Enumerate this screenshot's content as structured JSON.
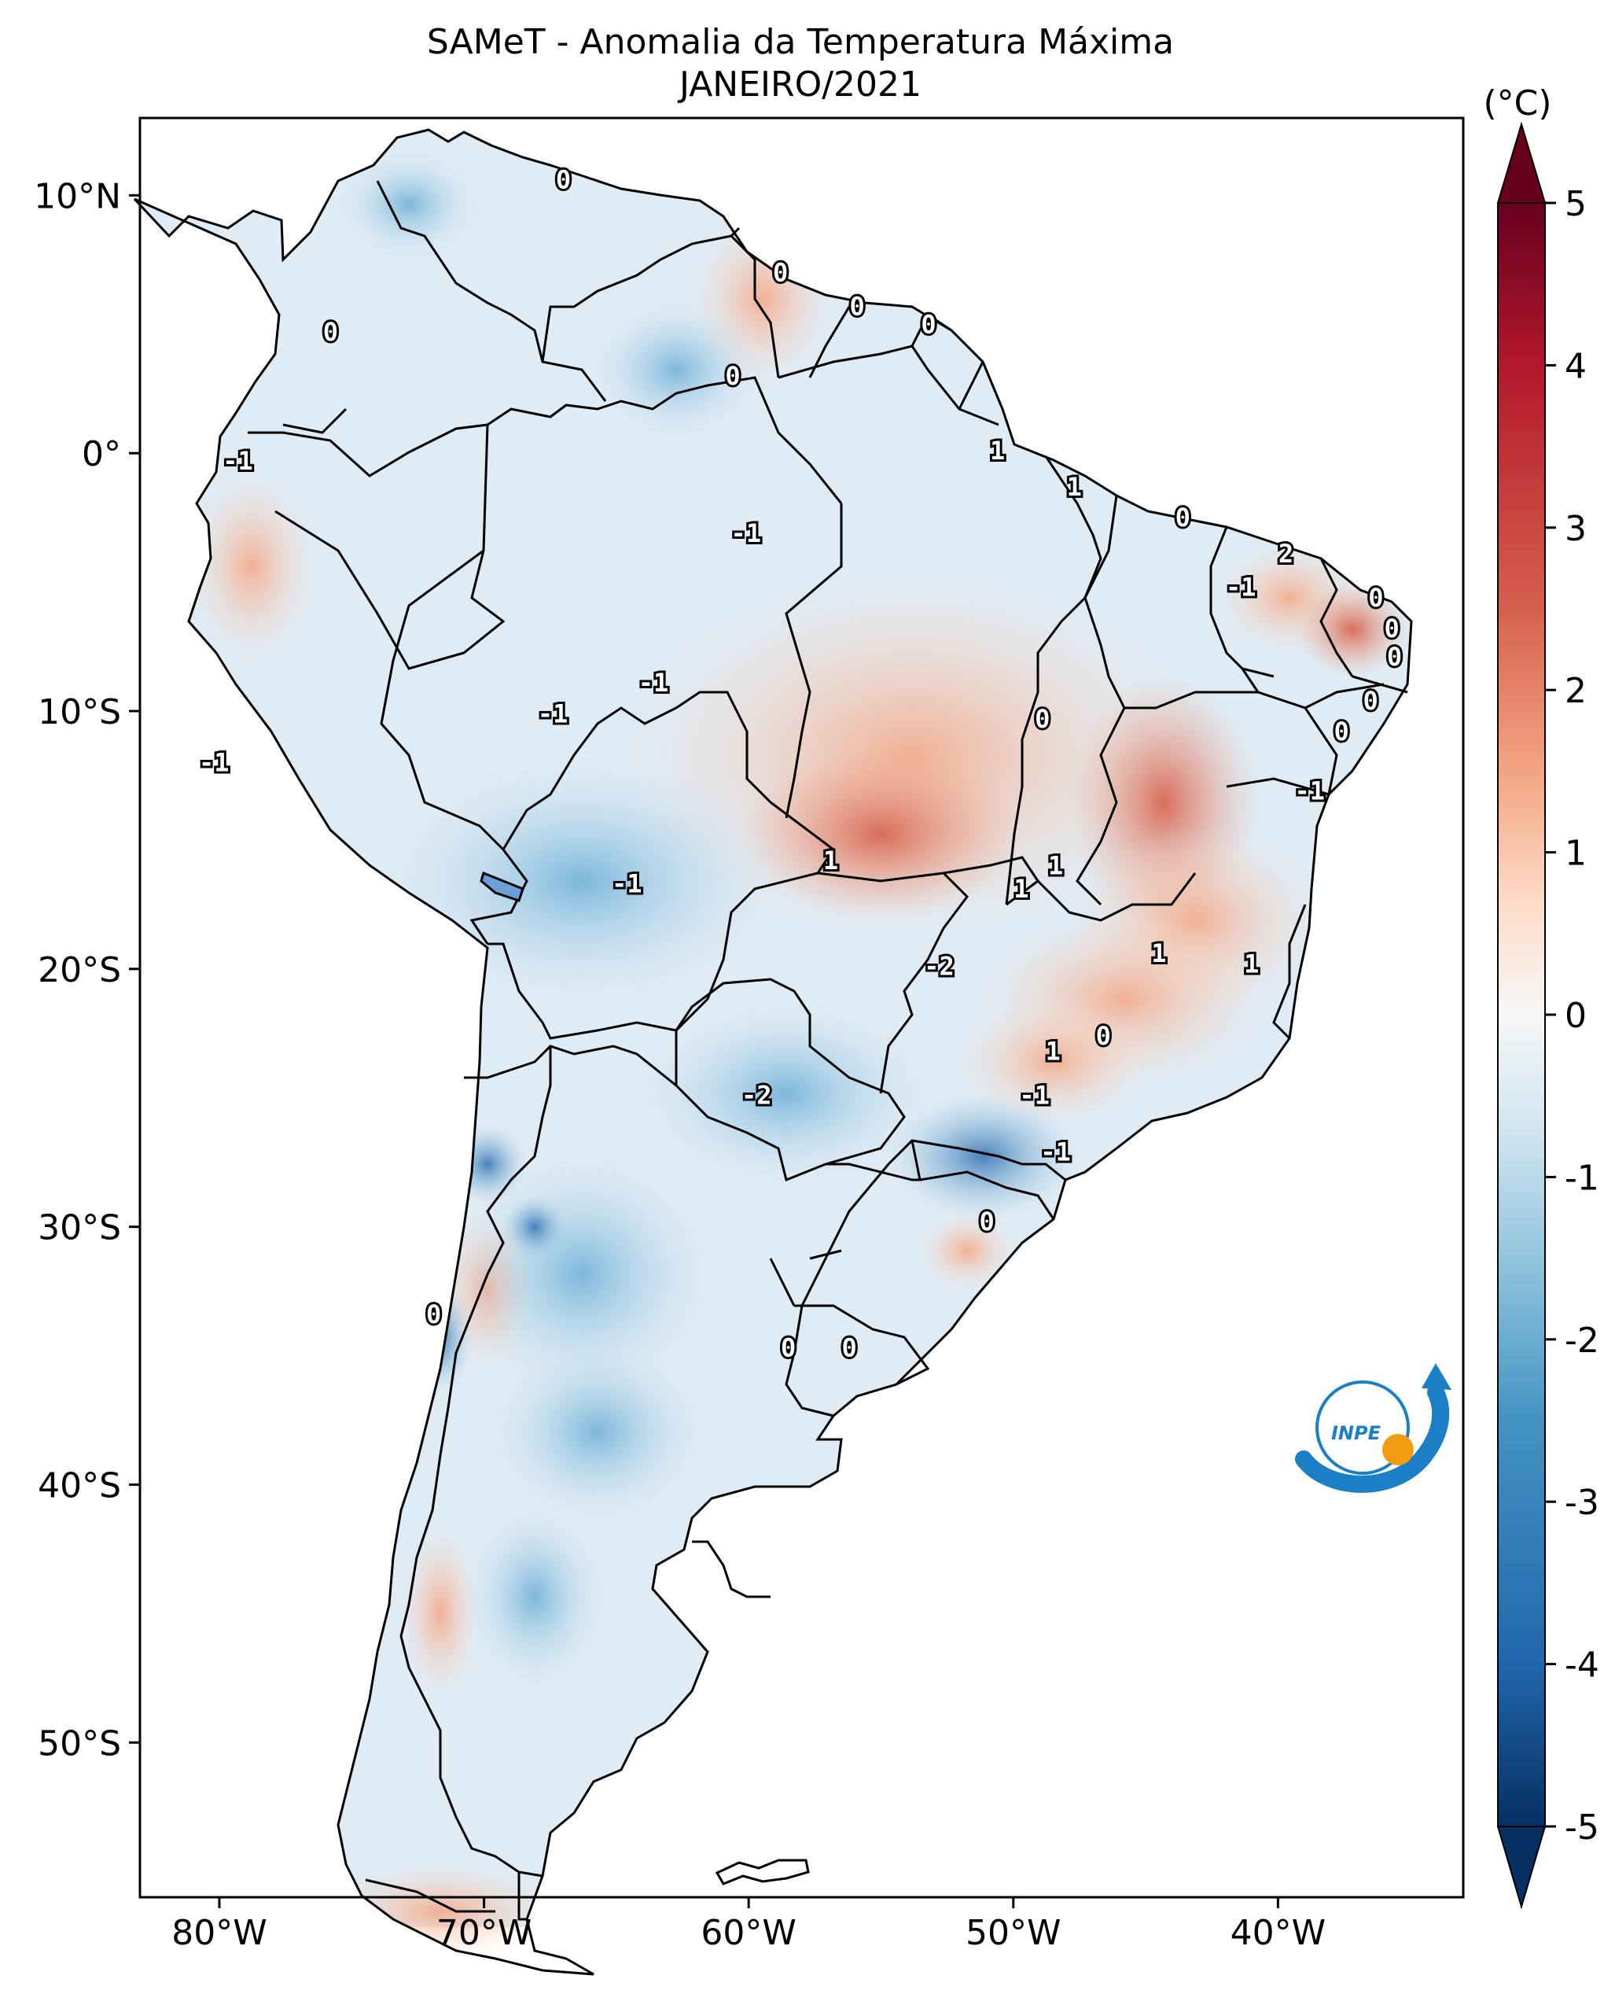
{
  "title": {
    "line1": "SAMeT - Anomalia da Temperatura Máxima",
    "line2": "JANEIRO/2021"
  },
  "map": {
    "lon_range": [
      -83,
      -33
    ],
    "lat_range": [
      -56,
      13
    ],
    "x_ticks": [
      {
        "lon": -80,
        "label": "80°W"
      },
      {
        "lon": -70,
        "label": "70°W"
      },
      {
        "lon": -60,
        "label": "60°W"
      },
      {
        "lon": -50,
        "label": "50°W"
      },
      {
        "lon": -40,
        "label": "40°W"
      }
    ],
    "y_ticks": [
      {
        "lat": 10,
        "label": "10°N"
      },
      {
        "lat": 0,
        "label": "0°"
      },
      {
        "lat": -10,
        "label": "10°S"
      },
      {
        "lat": -20,
        "label": "20°S"
      },
      {
        "lat": -30,
        "label": "30°S"
      },
      {
        "lat": -40,
        "label": "40°S"
      },
      {
        "lat": -50,
        "label": "50°S"
      }
    ],
    "contour_labels": [
      {
        "lon": -67.0,
        "lat": 10.6,
        "text": "0"
      },
      {
        "lon": -75.8,
        "lat": 4.7,
        "text": "0"
      },
      {
        "lon": -58.8,
        "lat": 7.0,
        "text": "0"
      },
      {
        "lon": -55.9,
        "lat": 5.7,
        "text": "0"
      },
      {
        "lon": -53.2,
        "lat": 5.0,
        "text": "0"
      },
      {
        "lon": -60.6,
        "lat": 3.0,
        "text": "0"
      },
      {
        "lon": -79.3,
        "lat": -0.3,
        "text": "-1"
      },
      {
        "lon": -50.6,
        "lat": 0.1,
        "text": "1"
      },
      {
        "lon": -47.7,
        "lat": -1.3,
        "text": "1"
      },
      {
        "lon": -43.6,
        "lat": -2.5,
        "text": "0"
      },
      {
        "lon": -60.1,
        "lat": -3.1,
        "text": "-1"
      },
      {
        "lon": -39.7,
        "lat": -3.9,
        "text": "2"
      },
      {
        "lon": -41.4,
        "lat": -5.2,
        "text": "-1"
      },
      {
        "lon": -36.3,
        "lat": -5.6,
        "text": "0"
      },
      {
        "lon": -35.7,
        "lat": -6.8,
        "text": "0"
      },
      {
        "lon": -35.6,
        "lat": -7.9,
        "text": "0"
      },
      {
        "lon": -36.5,
        "lat": -9.6,
        "text": "0"
      },
      {
        "lon": -37.6,
        "lat": -10.8,
        "text": "0"
      },
      {
        "lon": -63.6,
        "lat": -8.9,
        "text": "-1"
      },
      {
        "lon": -67.4,
        "lat": -10.1,
        "text": "-1"
      },
      {
        "lon": -48.9,
        "lat": -10.3,
        "text": "0"
      },
      {
        "lon": -80.2,
        "lat": -12.0,
        "text": "-1"
      },
      {
        "lon": -38.8,
        "lat": -13.1,
        "text": "-1"
      },
      {
        "lon": -56.9,
        "lat": -15.8,
        "text": "1"
      },
      {
        "lon": -48.4,
        "lat": -16.0,
        "text": "1"
      },
      {
        "lon": -49.7,
        "lat": -16.9,
        "text": "1"
      },
      {
        "lon": -64.6,
        "lat": -16.7,
        "text": "-1"
      },
      {
        "lon": -52.8,
        "lat": -19.9,
        "text": "-2"
      },
      {
        "lon": -44.5,
        "lat": -19.4,
        "text": "1"
      },
      {
        "lon": -41.0,
        "lat": -19.8,
        "text": "1"
      },
      {
        "lon": -46.6,
        "lat": -22.6,
        "text": "0"
      },
      {
        "lon": -48.5,
        "lat": -23.2,
        "text": "1"
      },
      {
        "lon": -59.7,
        "lat": -24.9,
        "text": "-2"
      },
      {
        "lon": -49.2,
        "lat": -24.9,
        "text": "-1"
      },
      {
        "lon": -48.4,
        "lat": -27.1,
        "text": "-1"
      },
      {
        "lon": -51.0,
        "lat": -29.8,
        "text": "0"
      },
      {
        "lon": -71.9,
        "lat": -33.4,
        "text": "0"
      },
      {
        "lon": -58.5,
        "lat": -34.7,
        "text": "0"
      },
      {
        "lon": -56.2,
        "lat": -34.7,
        "text": "0"
      }
    ]
  },
  "colorbar": {
    "unit": "(°C)",
    "vmin": -5,
    "vmax": 5,
    "ticks": [
      "5",
      "4",
      "3",
      "2",
      "1",
      "0",
      "-1",
      "-2",
      "-3",
      "-4",
      "-5"
    ],
    "colors_top_to_bottom": [
      "#67001f",
      "#b2182b",
      "#d6604d",
      "#f4a582",
      "#fddbc7",
      "#f7f7f7",
      "#d1e5f0",
      "#92c5de",
      "#4393c3",
      "#2166ac",
      "#053061"
    ]
  },
  "logo": {
    "text": "INPE",
    "blue": "#1a7fc4",
    "orange": "#f39c12"
  }
}
